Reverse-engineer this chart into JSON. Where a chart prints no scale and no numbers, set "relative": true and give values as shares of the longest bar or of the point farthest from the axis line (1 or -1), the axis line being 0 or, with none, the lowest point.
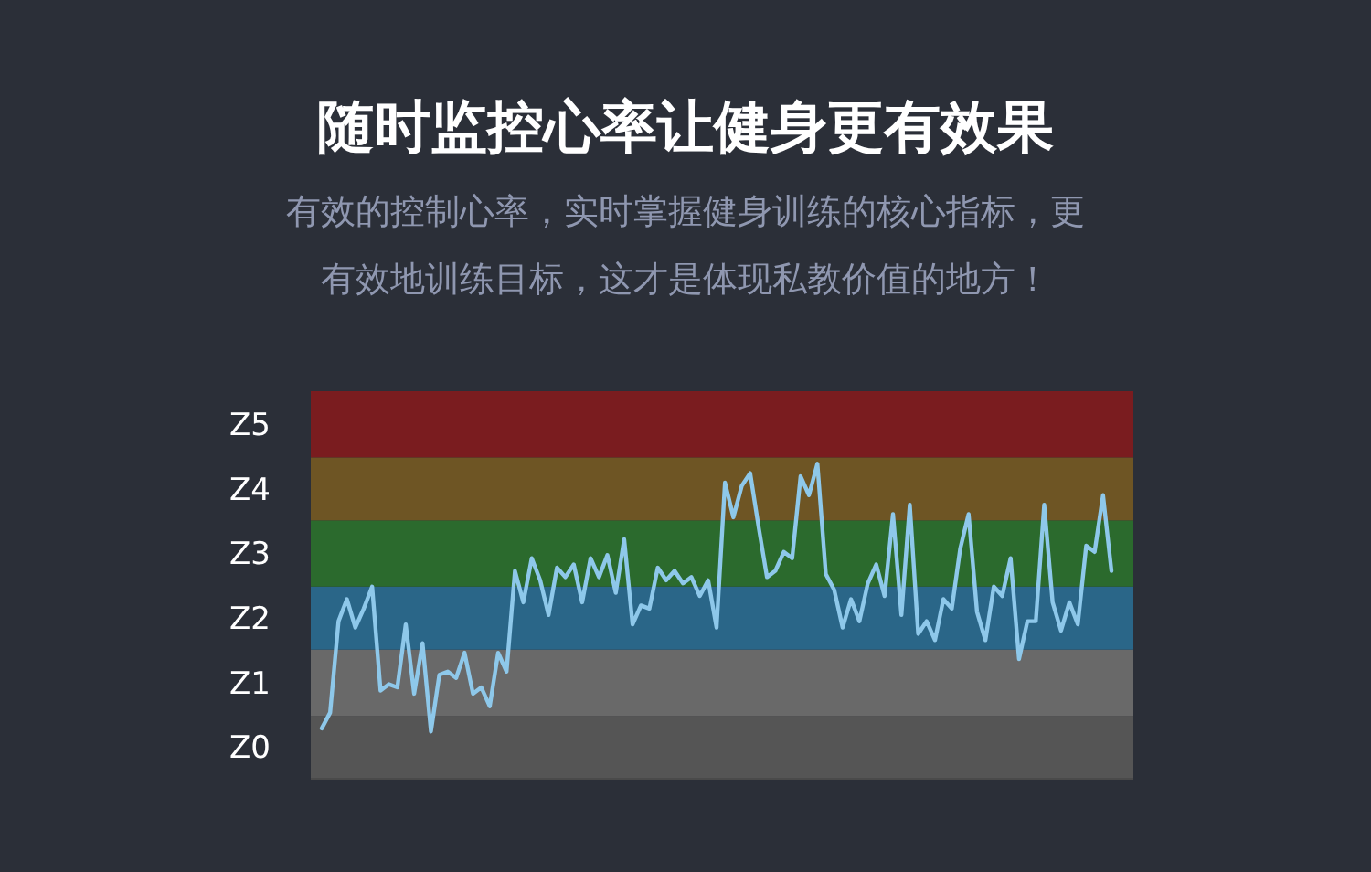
{
  "chart_data": {
    "type": "line",
    "title": "随时监控心率让健身更有效果",
    "subtitle": "有效的控制心率，实时掌握健身训练的核心指标，更有效地训练目标，这才是体现私教价值的地方！",
    "categories": [
      null,
      null,
      null,
      null,
      null,
      null,
      null,
      null,
      null,
      null,
      null,
      null,
      null,
      null,
      null,
      null,
      null,
      null,
      null,
      null,
      null,
      null,
      null,
      null,
      null,
      null,
      null,
      null,
      null,
      null,
      null,
      null,
      null,
      null,
      null,
      null,
      null,
      null,
      null,
      null,
      null,
      null,
      null,
      null,
      null,
      null,
      null,
      null,
      null,
      null,
      null,
      null,
      null,
      null,
      null,
      null,
      null,
      null,
      null,
      null,
      null,
      null,
      null,
      null,
      null,
      null,
      null,
      null,
      null,
      null,
      null,
      null,
      null,
      null,
      null,
      null,
      null,
      null,
      null,
      null,
      null,
      null,
      null,
      null,
      null,
      null,
      null,
      null,
      null,
      null,
      null,
      null,
      null,
      null,
      null
    ],
    "relative": true,
    "series": [
      {
        "color": "#8ec8ea",
        "values": [
          0.16,
          0.21,
          0.5,
          0.57,
          0.48,
          0.54,
          0.61,
          0.28,
          0.3,
          0.29,
          0.49,
          0.27,
          0.43,
          0.15,
          0.33,
          0.34,
          0.32,
          0.4,
          0.27,
          0.29,
          0.23,
          0.4,
          0.34,
          0.66,
          0.56,
          0.7,
          0.63,
          0.52,
          0.67,
          0.64,
          0.68,
          0.56,
          0.7,
          0.64,
          0.71,
          0.59,
          0.76,
          0.49,
          0.55,
          0.54,
          0.67,
          0.63,
          0.66,
          0.62,
          0.64,
          0.58,
          0.63,
          0.48,
          0.94,
          0.83,
          0.93,
          0.97,
          0.8,
          0.64,
          0.66,
          0.72,
          0.7,
          0.96,
          0.9,
          1,
          0.65,
          0.6,
          0.48,
          0.57,
          0.5,
          0.62,
          0.68,
          0.58,
          0.84,
          0.52,
          0.87,
          0.46,
          0.5,
          0.44,
          0.57,
          0.54,
          0.73,
          0.84,
          0.53,
          0.44,
          0.61,
          0.58,
          0.7,
          0.38,
          0.5,
          0.5,
          0.87,
          0.56,
          0.47,
          0.56,
          0.49,
          0.74,
          0.72,
          0.9,
          0.66
        ]
      }
    ],
    "bands": [
      {
        "axis": "y",
        "from": 0,
        "to": 0.2,
        "label": "Z0",
        "color": "#555555"
      },
      {
        "axis": "y",
        "from": 0.2,
        "to": 0.41,
        "label": "Z1",
        "color": "#696969"
      },
      {
        "axis": "y",
        "from": 0.41,
        "to": 0.61,
        "label": "Z2",
        "color": "#2a6688"
      },
      {
        "axis": "y",
        "from": 0.61,
        "to": 0.82,
        "label": "Z3",
        "color": "#2b6a2d"
      },
      {
        "axis": "y",
        "from": 0.82,
        "to": 1.02,
        "label": "Z4",
        "color": "#6e5524"
      },
      {
        "axis": "y",
        "from": 1.02,
        "to": 1.23,
        "label": "Z5",
        "color": "#7a1c1f"
      }
    ],
    "marker": "none",
    "line_style": "solid"
  }
}
